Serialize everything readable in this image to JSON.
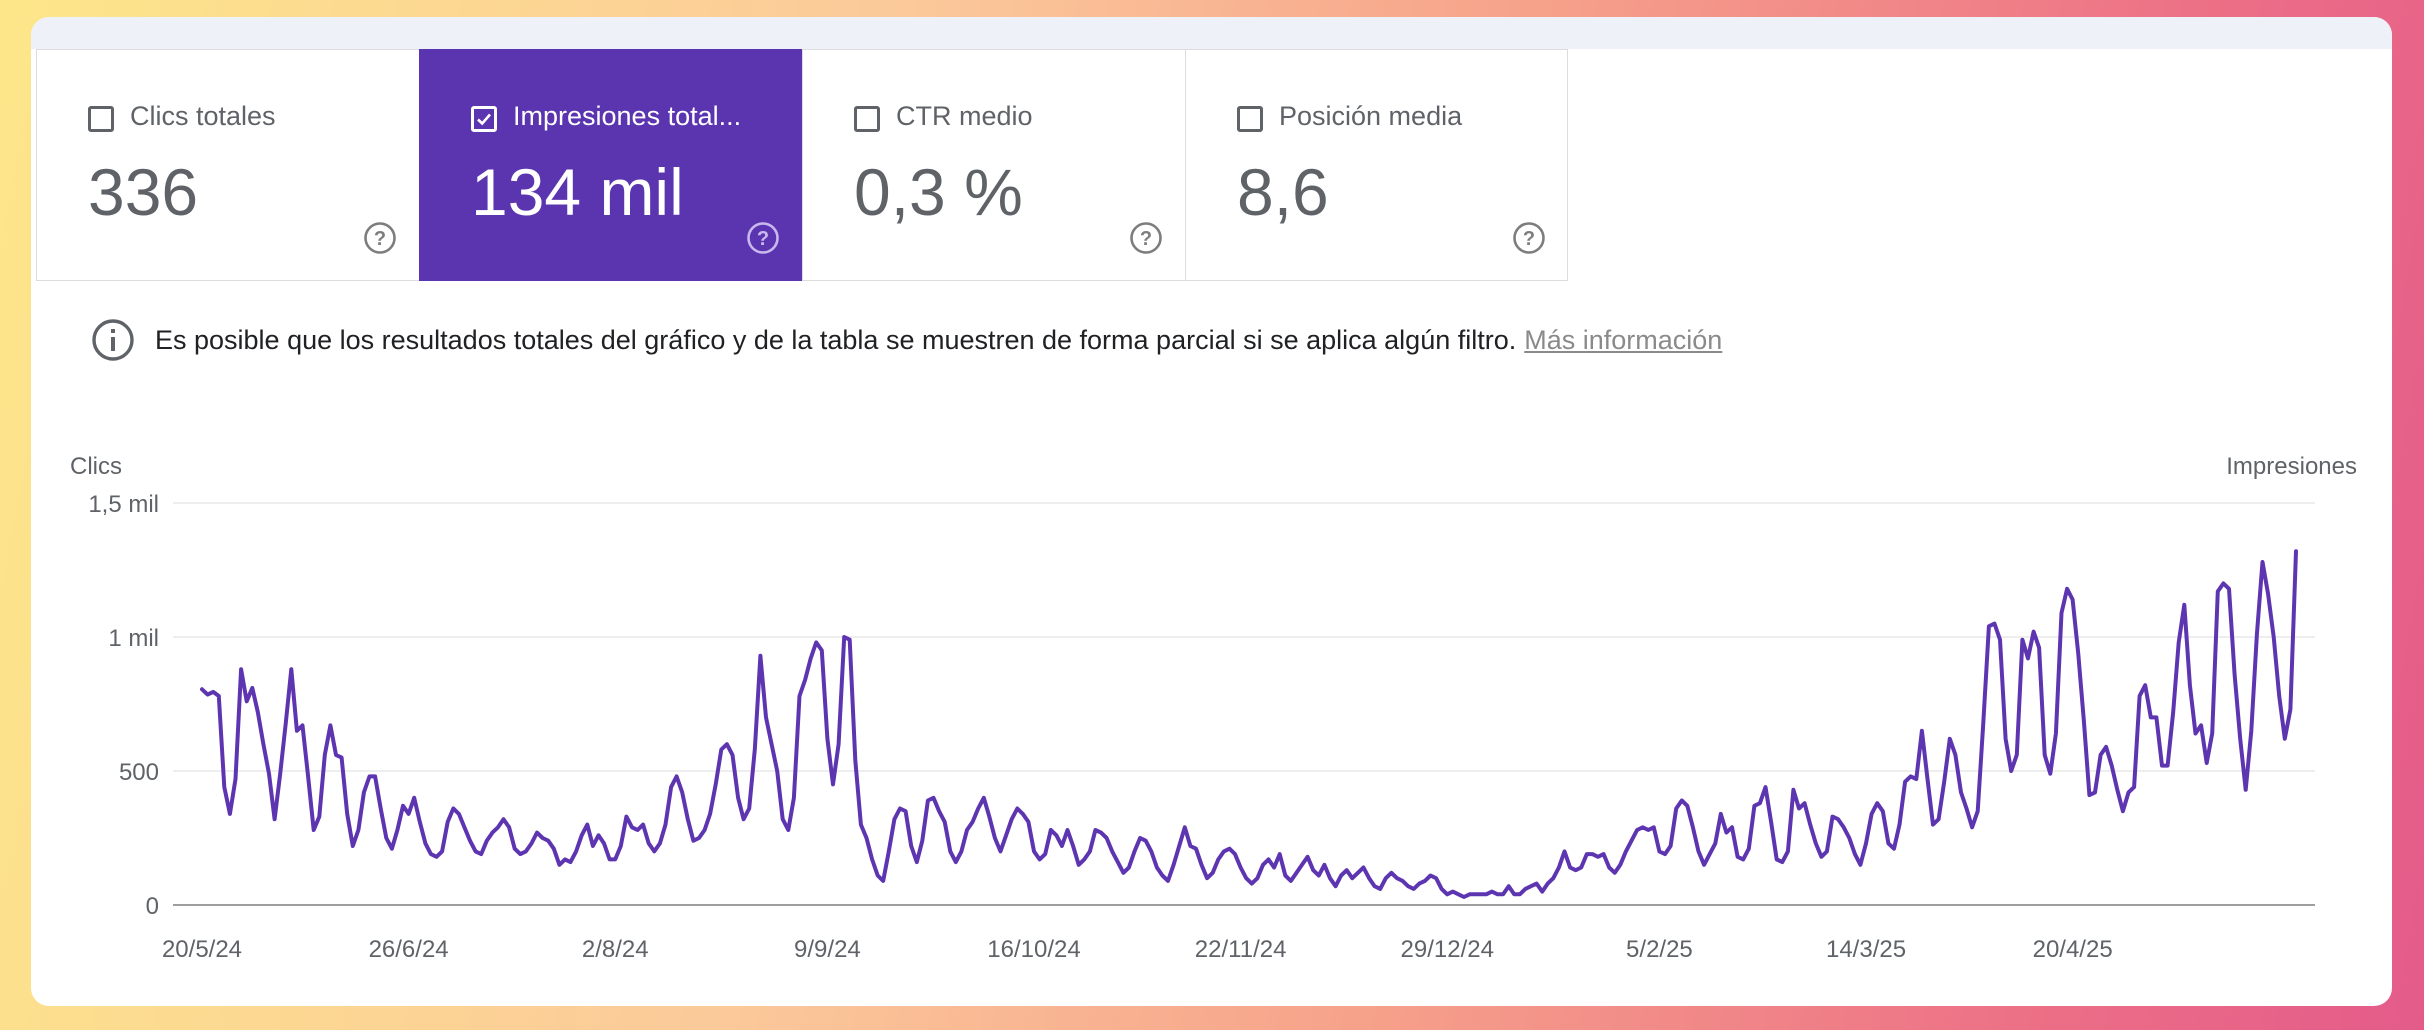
{
  "metrics": [
    {
      "label": "Clics totales",
      "value": "336",
      "checked": false
    },
    {
      "label": "Impresiones total...",
      "value": "134 mil",
      "checked": true
    },
    {
      "label": "CTR medio",
      "value": "0,3 %",
      "checked": false
    },
    {
      "label": "Posición media",
      "value": "8,6",
      "checked": false
    }
  ],
  "notice": {
    "text": "Es posible que los resultados totales del gráfico y de la tabla se muestren de forma parcial si se aplica algún filtro.",
    "link": "Más información"
  },
  "colors": {
    "accent": "#5b35b0",
    "line": "#5e35b1",
    "grid": "#e8e8e8"
  },
  "chart_data": {
    "type": "line",
    "ylabel_left": "Clics",
    "ylabel_right": "Impresiones",
    "yticks": [
      {
        "v": 0,
        "label": "0"
      },
      {
        "v": 500,
        "label": "500"
      },
      {
        "v": 1000,
        "label": "1 mil"
      },
      {
        "v": 1500,
        "label": "1,5 mil"
      }
    ],
    "ylim": [
      0,
      1500
    ],
    "x_tick_labels": [
      "20/5/24",
      "26/6/24",
      "2/8/24",
      "9/9/24",
      "16/10/24",
      "22/11/24",
      "29/12/24",
      "5/2/25",
      "14/3/25",
      "20/4/25"
    ],
    "x_tick_indices": [
      0,
      37,
      74,
      112,
      149,
      186,
      223,
      261,
      298,
      335
    ],
    "x_start": "20/5/24",
    "x_end": "27/5/25",
    "grid": true,
    "series": [
      {
        "values": [
          805,
          785,
          795,
          780,
          440,
          340,
          470,
          880,
          760,
          810,
          720,
          600,
          490,
          320,
          490,
          680,
          880,
          650,
          670,
          480,
          280,
          330,
          560,
          670,
          560,
          550,
          340,
          220,
          280,
          420,
          480,
          480,
          360,
          250,
          210,
          280,
          370,
          340,
          400,
          310,
          230,
          190,
          180,
          200,
          310,
          360,
          340,
          290,
          240,
          200,
          190,
          240,
          270,
          290,
          320,
          290,
          210,
          190,
          200,
          230,
          270,
          250,
          240,
          210,
          150,
          170,
          160,
          200,
          260,
          300,
          220,
          260,
          230,
          170,
          170,
          220,
          330,
          290,
          280,
          300,
          230,
          200,
          230,
          300,
          440,
          480,
          420,
          320,
          240,
          250,
          280,
          340,
          450,
          580,
          600,
          560,
          400,
          320,
          360,
          580,
          930,
          700,
          600,
          500,
          320,
          280,
          400,
          780,
          840,
          920,
          980,
          950,
          620,
          450,
          600,
          1000,
          990,
          540,
          300,
          250,
          170,
          110,
          90,
          200,
          320,
          360,
          350,
          220,
          160,
          240,
          390,
          400,
          350,
          310,
          200,
          160,
          200,
          280,
          310,
          360,
          400,
          330,
          250,
          200,
          260,
          320,
          360,
          340,
          310,
          200,
          170,
          190,
          280,
          260,
          220,
          280,
          220,
          150,
          170,
          200,
          280,
          270,
          250,
          200,
          160,
          120,
          140,
          200,
          250,
          240,
          200,
          140,
          110,
          90,
          150,
          220,
          290,
          220,
          210,
          150,
          100,
          120,
          170,
          200,
          210,
          190,
          140,
          100,
          80,
          100,
          150,
          170,
          140,
          190,
          110,
          90,
          120,
          150,
          180,
          130,
          110,
          150,
          100,
          70,
          110,
          130,
          100,
          120,
          140,
          100,
          70,
          60,
          100,
          120,
          100,
          90,
          70,
          60,
          80,
          90,
          110,
          100,
          60,
          40,
          50,
          40,
          30,
          40,
          40,
          40,
          40,
          50,
          40,
          40,
          70,
          40,
          40,
          60,
          70,
          80,
          50,
          80,
          100,
          140,
          200,
          140,
          130,
          140,
          190,
          190,
          180,
          190,
          140,
          120,
          150,
          200,
          240,
          280,
          290,
          280,
          290,
          200,
          190,
          220,
          360,
          390,
          370,
          290,
          200,
          150,
          190,
          230,
          340,
          270,
          290,
          180,
          170,
          210,
          370,
          380,
          440,
          310,
          170,
          160,
          200,
          430,
          360,
          380,
          300,
          230,
          180,
          200,
          330,
          320,
          290,
          250,
          190,
          150,
          230,
          340,
          380,
          350,
          230,
          210,
          300,
          460,
          480,
          470,
          650,
          470,
          300,
          320,
          460,
          620,
          560,
          420,
          360,
          290,
          350,
          680,
          1040,
          1050,
          990,
          620,
          500,
          560,
          990,
          920,
          1020,
          960,
          560,
          490,
          640,
          1090,
          1180,
          1140,
          940,
          690,
          410,
          420,
          560,
          590,
          520,
          430,
          350,
          420,
          440,
          780,
          820,
          700,
          700,
          520,
          520,
          720,
          980,
          1120,
          820,
          640,
          670,
          530,
          640,
          1170,
          1200,
          1180,
          860,
          620,
          430,
          650,
          1010,
          1280,
          1160,
          1000,
          780,
          620,
          730,
          1320
        ]
      }
    ]
  }
}
